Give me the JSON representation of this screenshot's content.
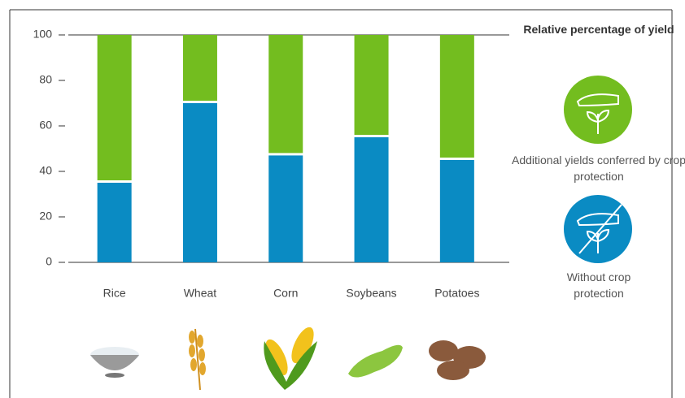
{
  "chart_data": {
    "type": "bar",
    "stacked": true,
    "categories": [
      "Rice",
      "Wheat",
      "Corn",
      "Soybeans",
      "Potatoes"
    ],
    "series": [
      {
        "name": "Without crop protection",
        "color": "#0a8bc3",
        "values": [
          35,
          70,
          47,
          55,
          45
        ]
      },
      {
        "name": "Additional yields conferred by crop protection",
        "color": "#73bd1f",
        "values": [
          65,
          30,
          53,
          45,
          55
        ]
      }
    ],
    "legend_title": "Relative percentage of yield",
    "ylim": [
      0,
      100
    ],
    "yticks": [
      0,
      20,
      40,
      60,
      80,
      100
    ],
    "grid": false,
    "legend": "right"
  }
}
